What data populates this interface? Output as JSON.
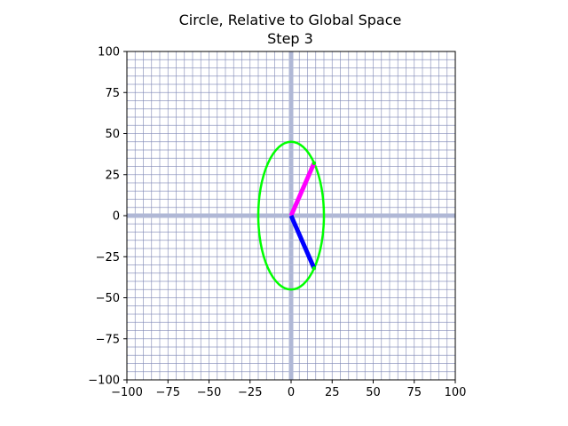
{
  "chart_data": {
    "type": "line",
    "title": "Circle, Relative to Global Space",
    "subtitle": "Step 3",
    "xlabel": "",
    "ylabel": "",
    "xlim": [
      -100,
      100
    ],
    "ylim": [
      -100,
      100
    ],
    "x_ticks": [
      -100,
      -75,
      -50,
      -25,
      0,
      25,
      50,
      75,
      100
    ],
    "y_ticks": [
      -100,
      -75,
      -50,
      -25,
      0,
      25,
      50,
      75,
      100
    ],
    "x_tick_labels": [
      "−100",
      "−75",
      "−50",
      "−25",
      "0",
      "25",
      "50",
      "75",
      "100"
    ],
    "y_tick_labels": [
      "−100",
      "−75",
      "−50",
      "−25",
      "0",
      "25",
      "50",
      "75",
      "100"
    ],
    "grid": true,
    "minor_grid_step": 5,
    "aspect": "equal",
    "axis_lines": {
      "color": "#b0b8d6"
    },
    "grid_color": "#7f87b5",
    "series": [
      {
        "kind": "ellipse",
        "color": "#00ff00",
        "center": [
          0,
          0
        ],
        "rx": 20,
        "ry": 45
      },
      {
        "kind": "segment",
        "color": "#ff00ff",
        "points": [
          [
            0,
            0
          ],
          [
            14,
            32
          ]
        ]
      },
      {
        "kind": "segment",
        "color": "#0000ff",
        "points": [
          [
            0,
            0
          ],
          [
            14,
            -32
          ]
        ]
      }
    ]
  }
}
